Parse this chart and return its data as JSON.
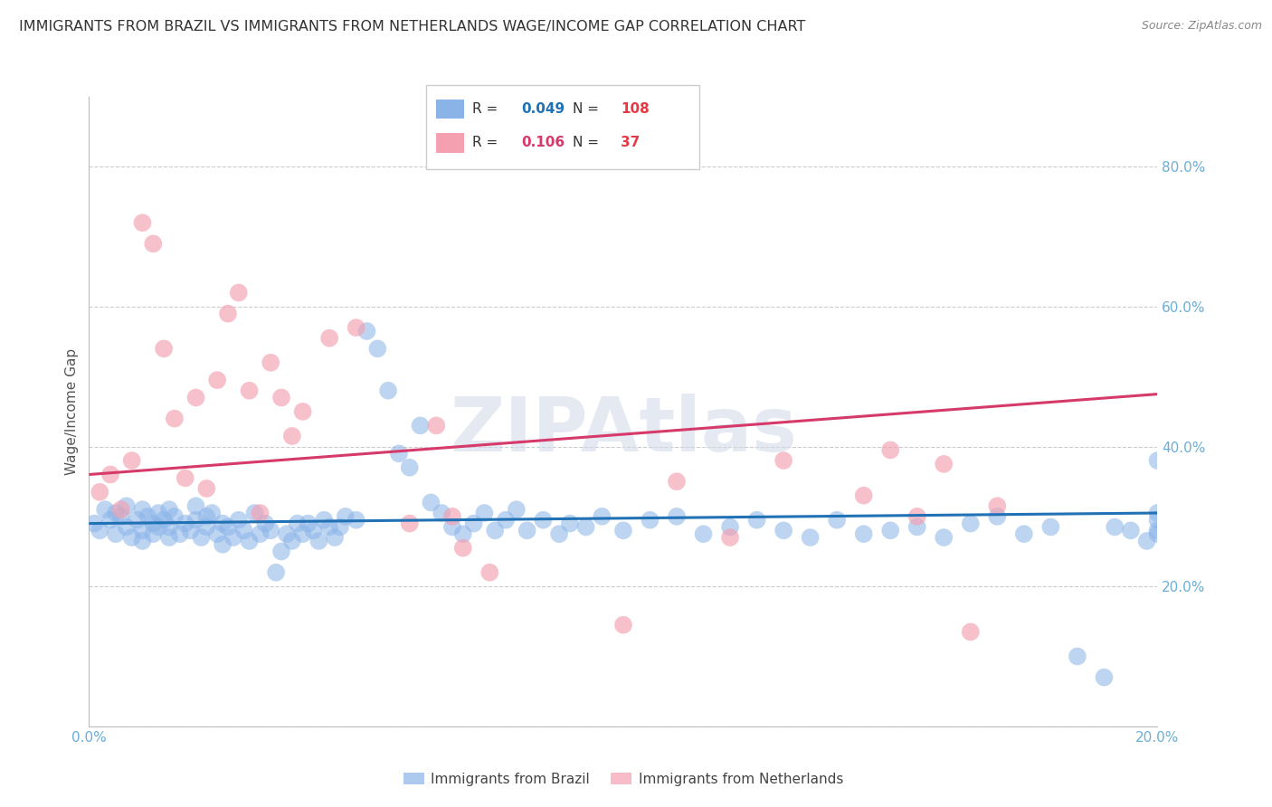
{
  "title": "IMMIGRANTS FROM BRAZIL VS IMMIGRANTS FROM NETHERLANDS WAGE/INCOME GAP CORRELATION CHART",
  "source": "Source: ZipAtlas.com",
  "ylabel": "Wage/Income Gap",
  "x_min": 0.0,
  "x_max": 0.2,
  "y_min": 0.0,
  "y_max": 0.9,
  "y_ticks": [
    0.0,
    0.2,
    0.4,
    0.6,
    0.8
  ],
  "y_tick_labels": [
    "",
    "20.0%",
    "40.0%",
    "60.0%",
    "80.0%"
  ],
  "x_ticks": [
    0.0,
    0.05,
    0.1,
    0.15,
    0.2
  ],
  "x_tick_labels": [
    "0.0%",
    "",
    "",
    "",
    "20.0%"
  ],
  "brazil_color": "#8ab4e8",
  "netherlands_color": "#f4a0b0",
  "brazil_R": 0.049,
  "brazil_N": 108,
  "netherlands_R": 0.106,
  "netherlands_N": 37,
  "legend_label_brazil": "Immigrants from Brazil",
  "legend_label_netherlands": "Immigrants from Netherlands",
  "brazil_scatter_x": [
    0.001,
    0.002,
    0.003,
    0.004,
    0.005,
    0.005,
    0.006,
    0.007,
    0.007,
    0.008,
    0.009,
    0.01,
    0.01,
    0.01,
    0.011,
    0.012,
    0.012,
    0.013,
    0.013,
    0.014,
    0.015,
    0.015,
    0.015,
    0.016,
    0.017,
    0.018,
    0.019,
    0.02,
    0.02,
    0.021,
    0.022,
    0.022,
    0.023,
    0.024,
    0.025,
    0.025,
    0.026,
    0.027,
    0.028,
    0.029,
    0.03,
    0.031,
    0.032,
    0.033,
    0.034,
    0.035,
    0.036,
    0.037,
    0.038,
    0.039,
    0.04,
    0.041,
    0.042,
    0.043,
    0.044,
    0.045,
    0.046,
    0.047,
    0.048,
    0.05,
    0.052,
    0.054,
    0.056,
    0.058,
    0.06,
    0.062,
    0.064,
    0.066,
    0.068,
    0.07,
    0.072,
    0.074,
    0.076,
    0.078,
    0.08,
    0.082,
    0.085,
    0.088,
    0.09,
    0.093,
    0.096,
    0.1,
    0.105,
    0.11,
    0.115,
    0.12,
    0.125,
    0.13,
    0.135,
    0.14,
    0.145,
    0.15,
    0.155,
    0.16,
    0.165,
    0.17,
    0.175,
    0.18,
    0.185,
    0.19,
    0.192,
    0.195,
    0.198,
    0.2,
    0.2,
    0.2,
    0.2,
    0.2
  ],
  "brazil_scatter_y": [
    0.29,
    0.28,
    0.31,
    0.295,
    0.305,
    0.275,
    0.3,
    0.285,
    0.315,
    0.27,
    0.295,
    0.31,
    0.28,
    0.265,
    0.3,
    0.29,
    0.275,
    0.305,
    0.285,
    0.295,
    0.27,
    0.31,
    0.285,
    0.3,
    0.275,
    0.29,
    0.28,
    0.295,
    0.315,
    0.27,
    0.3,
    0.285,
    0.305,
    0.275,
    0.29,
    0.26,
    0.285,
    0.27,
    0.295,
    0.28,
    0.265,
    0.305,
    0.275,
    0.29,
    0.28,
    0.22,
    0.25,
    0.275,
    0.265,
    0.29,
    0.275,
    0.29,
    0.28,
    0.265,
    0.295,
    0.285,
    0.27,
    0.285,
    0.3,
    0.295,
    0.565,
    0.54,
    0.48,
    0.39,
    0.37,
    0.43,
    0.32,
    0.305,
    0.285,
    0.275,
    0.29,
    0.305,
    0.28,
    0.295,
    0.31,
    0.28,
    0.295,
    0.275,
    0.29,
    0.285,
    0.3,
    0.28,
    0.295,
    0.3,
    0.275,
    0.285,
    0.295,
    0.28,
    0.27,
    0.295,
    0.275,
    0.28,
    0.285,
    0.27,
    0.29,
    0.3,
    0.275,
    0.285,
    0.1,
    0.07,
    0.285,
    0.28,
    0.265,
    0.275,
    0.295,
    0.305,
    0.38,
    0.28
  ],
  "netherlands_scatter_x": [
    0.002,
    0.004,
    0.006,
    0.008,
    0.01,
    0.012,
    0.014,
    0.016,
    0.018,
    0.02,
    0.022,
    0.024,
    0.026,
    0.028,
    0.03,
    0.032,
    0.034,
    0.036,
    0.038,
    0.04,
    0.045,
    0.05,
    0.06,
    0.065,
    0.068,
    0.07,
    0.075,
    0.1,
    0.11,
    0.12,
    0.13,
    0.145,
    0.15,
    0.155,
    0.16,
    0.165,
    0.17
  ],
  "netherlands_scatter_y": [
    0.335,
    0.36,
    0.31,
    0.38,
    0.72,
    0.69,
    0.54,
    0.44,
    0.355,
    0.47,
    0.34,
    0.495,
    0.59,
    0.62,
    0.48,
    0.305,
    0.52,
    0.47,
    0.415,
    0.45,
    0.555,
    0.57,
    0.29,
    0.43,
    0.3,
    0.255,
    0.22,
    0.145,
    0.35,
    0.27,
    0.38,
    0.33,
    0.395,
    0.3,
    0.375,
    0.135,
    0.315
  ],
  "brazil_line_x": [
    0.0,
    0.2
  ],
  "brazil_line_y": [
    0.29,
    0.305
  ],
  "netherlands_line_x": [
    0.0,
    0.2
  ],
  "netherlands_line_y": [
    0.36,
    0.475
  ],
  "watermark": "ZIPAtlas",
  "background_color": "#ffffff",
  "grid_color": "#cccccc",
  "tick_color": "#6baed6",
  "title_color": "#333333",
  "title_fontsize": 11.5,
  "source_color": "#888888",
  "brazil_line_color": "#2171b5",
  "netherlands_line_color": "#d63a6a",
  "legend_R_brazil": "#2171b5",
  "legend_N_brazil": "#e63946",
  "legend_R_netherlands": "#d63a6a",
  "legend_N_netherlands": "#e63946"
}
